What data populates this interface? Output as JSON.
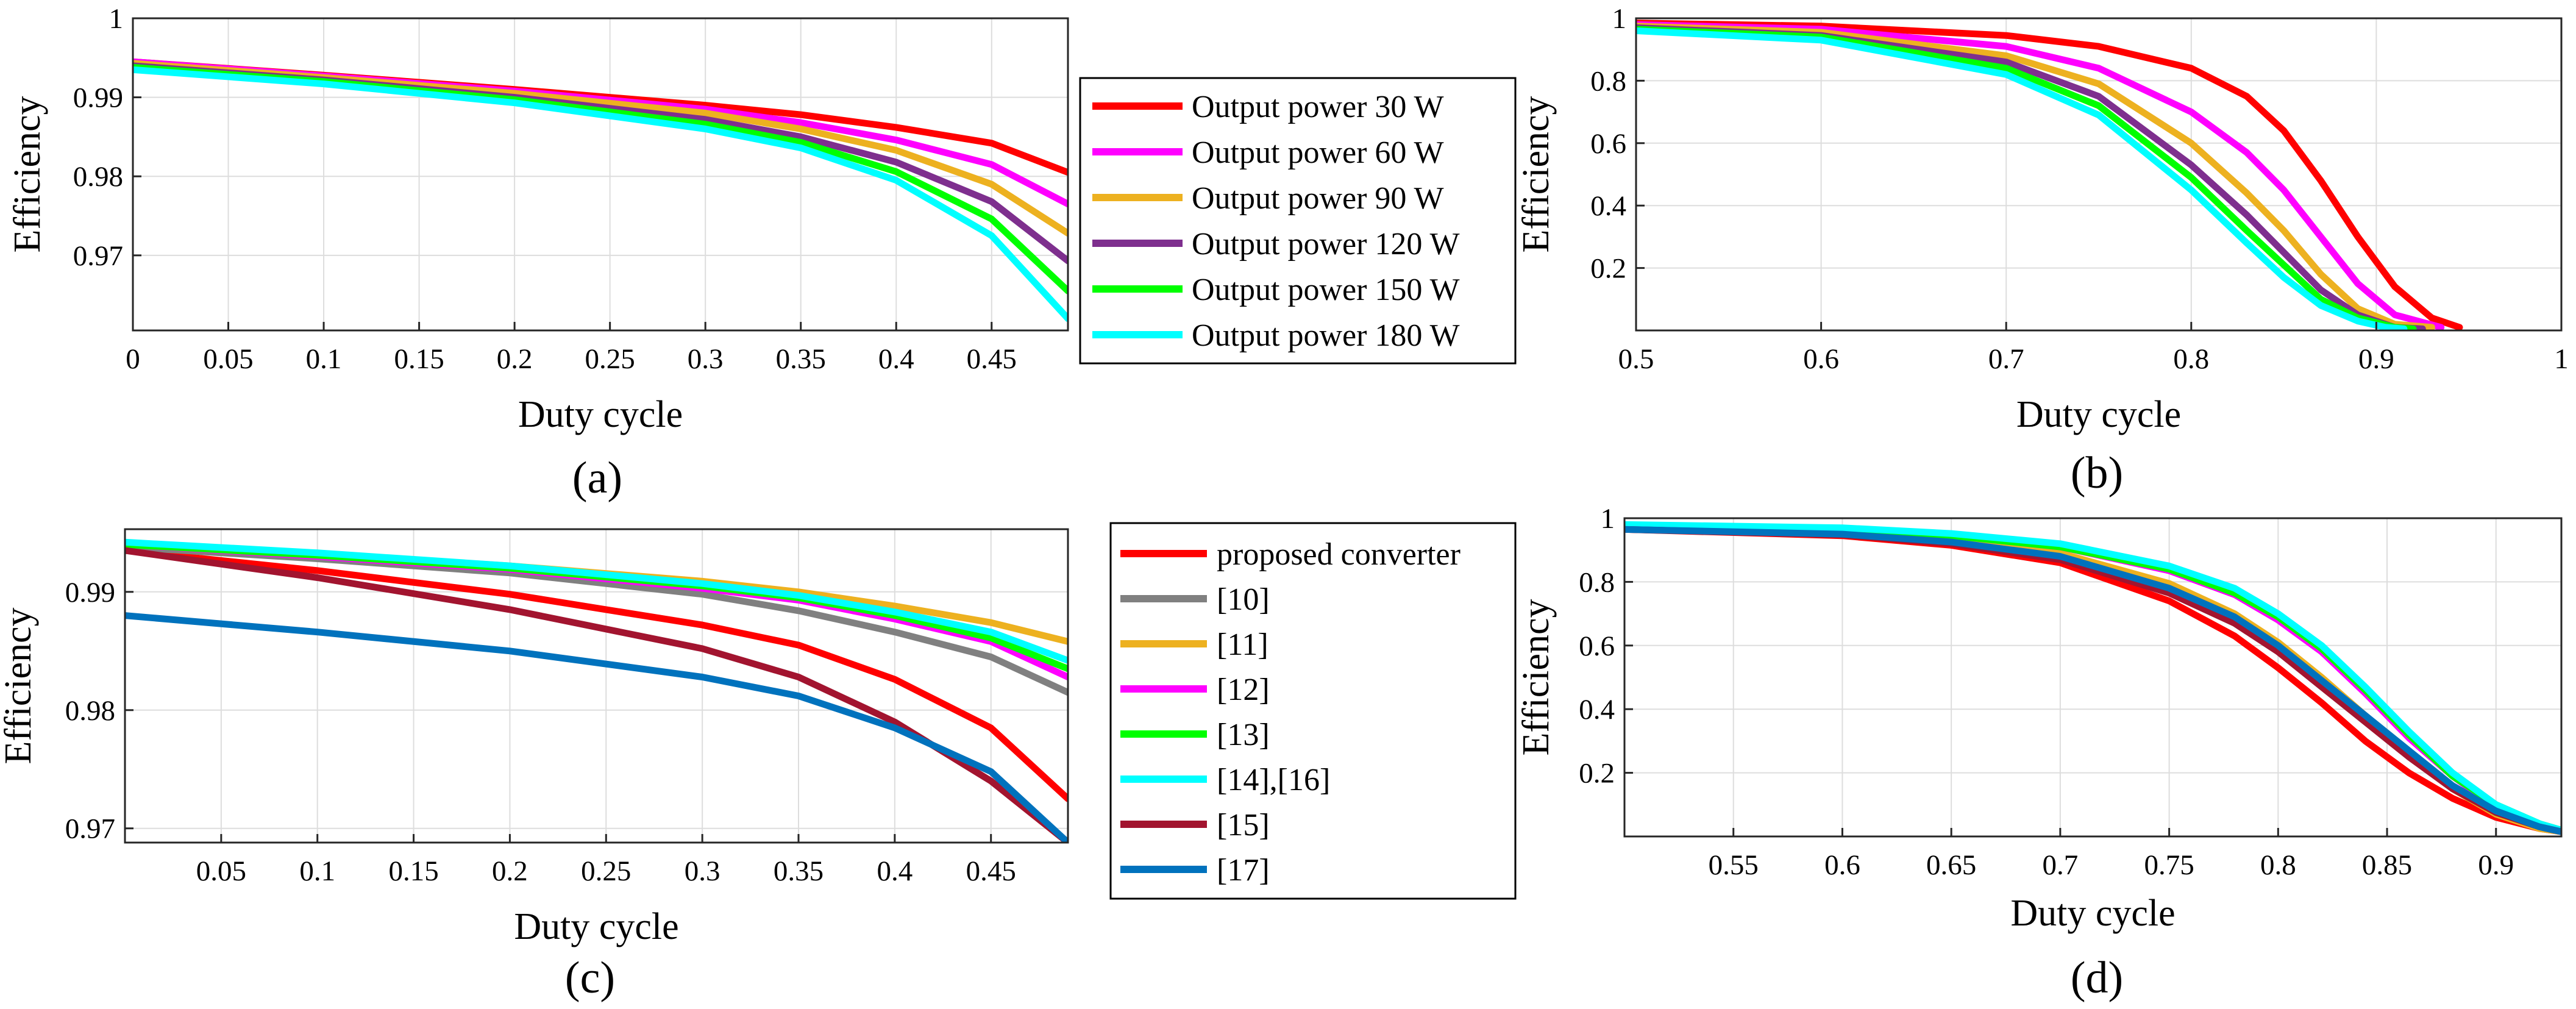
{
  "chart_data": [
    {
      "panel": "(a)",
      "type": "line",
      "xlabel": "Duty cycle",
      "ylabel": "Efficiency",
      "xlim": [
        0,
        0.49
      ],
      "ylim": [
        0.9605,
        1.0
      ],
      "xticks": [
        0,
        0.05,
        0.1,
        0.15,
        0.2,
        0.25,
        0.3,
        0.35,
        0.4,
        0.45
      ],
      "xtick_labels": [
        "0",
        "0.05",
        "0.1",
        "0.15",
        "0.2",
        "0.25",
        "0.3",
        "0.35",
        "0.4",
        "0.45"
      ],
      "yticks": [
        0.97,
        0.98,
        0.99,
        1.0
      ],
      "ytick_labels": [
        "0.97",
        "0.98",
        "0.99",
        "1"
      ],
      "grid": true,
      "legend_position": "outside-right",
      "x": [
        0,
        0.1,
        0.2,
        0.3,
        0.35,
        0.4,
        0.45,
        0.49
      ],
      "series": [
        {
          "name": "Output power 30 W",
          "color": "#ff0000",
          "values": [
            0.9945,
            0.9928,
            0.991,
            0.989,
            0.9878,
            0.9862,
            0.9842,
            0.9805
          ]
        },
        {
          "name": "Output power 60 W",
          "color": "#ff00ff",
          "values": [
            0.9945,
            0.9927,
            0.9908,
            0.9885,
            0.9868,
            0.9846,
            0.9815,
            0.9765
          ]
        },
        {
          "name": "Output power 90 W",
          "color": "#edb120",
          "values": [
            0.9943,
            0.9925,
            0.9905,
            0.988,
            0.986,
            0.9833,
            0.979,
            0.9728
          ]
        },
        {
          "name": "Output power 120 W",
          "color": "#7e2f8e",
          "values": [
            0.994,
            0.9922,
            0.99,
            0.9872,
            0.985,
            0.9818,
            0.9768,
            0.9693
          ]
        },
        {
          "name": "Output power 150 W",
          "color": "#00ff00",
          "values": [
            0.9938,
            0.992,
            0.9897,
            0.9866,
            0.9843,
            0.9806,
            0.9746,
            0.9655
          ]
        },
        {
          "name": "Output power 180 W",
          "color": "#00ffff",
          "values": [
            0.9935,
            0.9917,
            0.9893,
            0.986,
            0.9836,
            0.9795,
            0.9725,
            0.962
          ]
        }
      ]
    },
    {
      "panel": "(b)",
      "type": "line",
      "xlabel": "Duty cycle",
      "ylabel": "Efficiency",
      "xlim": [
        0.5,
        1.0
      ],
      "ylim": [
        0,
        1.0
      ],
      "xticks": [
        0.5,
        0.6,
        0.7,
        0.8,
        0.9,
        1.0
      ],
      "xtick_labels": [
        "0.5",
        "0.6",
        "0.7",
        "0.8",
        "0.9",
        "1"
      ],
      "yticks": [
        0.2,
        0.4,
        0.6,
        0.8,
        1.0
      ],
      "ytick_labels": [
        "0.2",
        "0.4",
        "0.6",
        "0.8",
        "1"
      ],
      "grid": true,
      "series": [
        {
          "name": "Output power 30 W",
          "color": "#ff0000",
          "x": [
            0.5,
            0.6,
            0.7,
            0.75,
            0.8,
            0.83,
            0.85,
            0.87,
            0.89,
            0.91,
            0.93,
            0.945
          ],
          "values": [
            0.985,
            0.975,
            0.945,
            0.91,
            0.84,
            0.75,
            0.64,
            0.48,
            0.3,
            0.14,
            0.04,
            0.01
          ]
        },
        {
          "name": "Output power 60 W",
          "color": "#ff00ff",
          "x": [
            0.5,
            0.6,
            0.7,
            0.75,
            0.8,
            0.83,
            0.85,
            0.87,
            0.89,
            0.91,
            0.935
          ],
          "values": [
            0.98,
            0.965,
            0.91,
            0.84,
            0.7,
            0.57,
            0.45,
            0.3,
            0.15,
            0.05,
            0.01
          ]
        },
        {
          "name": "Output power 90 W",
          "color": "#edb120",
          "x": [
            0.5,
            0.6,
            0.7,
            0.75,
            0.8,
            0.83,
            0.85,
            0.87,
            0.89,
            0.91,
            0.93
          ],
          "values": [
            0.975,
            0.955,
            0.88,
            0.79,
            0.6,
            0.44,
            0.32,
            0.18,
            0.07,
            0.02,
            0.01
          ]
        },
        {
          "name": "Output power 120 W",
          "color": "#7e2f8e",
          "x": [
            0.5,
            0.6,
            0.7,
            0.75,
            0.8,
            0.83,
            0.85,
            0.87,
            0.89,
            0.91,
            0.925
          ],
          "values": [
            0.97,
            0.945,
            0.86,
            0.75,
            0.53,
            0.37,
            0.25,
            0.13,
            0.05,
            0.01,
            0.005
          ]
        },
        {
          "name": "Output power 150 W",
          "color": "#00ff00",
          "x": [
            0.5,
            0.6,
            0.7,
            0.75,
            0.8,
            0.83,
            0.85,
            0.87,
            0.89,
            0.91,
            0.92
          ],
          "values": [
            0.965,
            0.94,
            0.84,
            0.72,
            0.49,
            0.32,
            0.21,
            0.1,
            0.04,
            0.01,
            0.005
          ]
        },
        {
          "name": "Output power 180 W",
          "color": "#00ffff",
          "x": [
            0.5,
            0.6,
            0.7,
            0.75,
            0.8,
            0.83,
            0.85,
            0.87,
            0.89,
            0.905,
            0.915
          ],
          "values": [
            0.96,
            0.93,
            0.82,
            0.69,
            0.45,
            0.28,
            0.17,
            0.08,
            0.03,
            0.01,
            0.005
          ]
        }
      ]
    },
    {
      "panel": "(c)",
      "type": "line",
      "xlabel": "Duty cycle",
      "ylabel": "Efficiency",
      "xlim": [
        0,
        0.49
      ],
      "ylim": [
        0.9688,
        0.9953
      ],
      "xticks": [
        0.05,
        0.1,
        0.15,
        0.2,
        0.25,
        0.3,
        0.35,
        0.4,
        0.45
      ],
      "xtick_labels": [
        "0.05",
        "0.1",
        "0.15",
        "0.2",
        "0.25",
        "0.3",
        "0.35",
        "0.4",
        "0.45"
      ],
      "yticks": [
        0.97,
        0.98,
        0.99
      ],
      "ytick_labels": [
        "0.97",
        "0.98",
        "0.99"
      ],
      "grid": true,
      "legend_position": "outside-right",
      "x": [
        0,
        0.1,
        0.2,
        0.3,
        0.35,
        0.4,
        0.45,
        0.49
      ],
      "series": [
        {
          "name": "proposed converter",
          "color": "#ff0000",
          "values": [
            0.9935,
            0.9918,
            0.9898,
            0.9872,
            0.9855,
            0.9826,
            0.9785,
            0.9725
          ]
        },
        {
          "name": "[10]",
          "color": "#808080",
          "values": [
            0.9938,
            0.9928,
            0.9916,
            0.9898,
            0.9884,
            0.9866,
            0.9845,
            0.9815
          ]
        },
        {
          "name": "[11]",
          "color": "#edb120",
          "values": [
            0.994,
            0.9932,
            0.9922,
            0.9909,
            0.99,
            0.9888,
            0.9874,
            0.9858
          ]
        },
        {
          "name": "[12]",
          "color": "#ff00ff",
          "values": [
            0.994,
            0.993,
            0.9919,
            0.9903,
            0.9893,
            0.9877,
            0.9858,
            0.9828
          ]
        },
        {
          "name": "[13]",
          "color": "#00ff00",
          "values": [
            0.994,
            0.9931,
            0.992,
            0.9905,
            0.9895,
            0.988,
            0.9861,
            0.9835
          ]
        },
        {
          "name": "[14],[16]",
          "color": "#00ffff",
          "values": [
            0.9942,
            0.9933,
            0.9922,
            0.9907,
            0.9897,
            0.9883,
            0.9866,
            0.9842
          ]
        },
        {
          "name": "[15]",
          "color": "#a2142f",
          "values": [
            0.9935,
            0.9912,
            0.9885,
            0.9852,
            0.9828,
            0.979,
            0.974,
            0.9688
          ]
        },
        {
          "name": "[17]",
          "color": "#0072bd",
          "values": [
            0.988,
            0.9866,
            0.985,
            0.9828,
            0.9812,
            0.9785,
            0.9748,
            0.9688
          ]
        }
      ]
    },
    {
      "panel": "(d)",
      "type": "line",
      "xlabel": "Duty cycle",
      "ylabel": "Efficiency",
      "xlim": [
        0.5,
        0.93
      ],
      "ylim": [
        0,
        1.0
      ],
      "xticks": [
        0.55,
        0.6,
        0.65,
        0.7,
        0.75,
        0.8,
        0.85,
        0.9
      ],
      "xtick_labels": [
        "0.55",
        "0.6",
        "0.65",
        "0.7",
        "0.75",
        "0.8",
        "0.85",
        "0.9"
      ],
      "yticks": [
        0.2,
        0.4,
        0.6,
        0.8,
        1.0
      ],
      "ytick_labels": [
        "0.2",
        "0.4",
        "0.6",
        "0.8",
        "1"
      ],
      "grid": true,
      "x": [
        0.5,
        0.6,
        0.65,
        0.7,
        0.75,
        0.78,
        0.8,
        0.82,
        0.84,
        0.86,
        0.88,
        0.9,
        0.92,
        0.93
      ],
      "series": [
        {
          "name": "proposed converter",
          "color": "#ff0000",
          "values": [
            0.965,
            0.945,
            0.915,
            0.86,
            0.74,
            0.63,
            0.53,
            0.42,
            0.3,
            0.2,
            0.12,
            0.06,
            0.025,
            0.015
          ]
        },
        {
          "name": "[10]",
          "color": "#808080",
          "values": [
            0.97,
            0.955,
            0.93,
            0.885,
            0.785,
            0.69,
            0.6,
            0.49,
            0.37,
            0.26,
            0.15,
            0.08,
            0.03,
            0.015
          ]
        },
        {
          "name": "[11]",
          "color": "#edb120",
          "values": [
            0.97,
            0.955,
            0.932,
            0.89,
            0.795,
            0.7,
            0.61,
            0.5,
            0.38,
            0.26,
            0.15,
            0.07,
            0.025,
            0.015
          ]
        },
        {
          "name": "[12]",
          "color": "#ff00ff",
          "values": [
            0.975,
            0.965,
            0.945,
            0.91,
            0.835,
            0.76,
            0.68,
            0.58,
            0.45,
            0.31,
            0.19,
            0.09,
            0.035,
            0.02
          ]
        },
        {
          "name": "[13]",
          "color": "#00ff00",
          "values": [
            0.975,
            0.965,
            0.945,
            0.91,
            0.84,
            0.765,
            0.69,
            0.59,
            0.46,
            0.32,
            0.19,
            0.1,
            0.04,
            0.02
          ]
        },
        {
          "name": "[14],[16]",
          "color": "#00ffff",
          "values": [
            0.98,
            0.97,
            0.952,
            0.92,
            0.85,
            0.78,
            0.7,
            0.6,
            0.47,
            0.33,
            0.2,
            0.1,
            0.04,
            0.02
          ]
        },
        {
          "name": "[15]",
          "color": "#a2142f",
          "values": [
            0.965,
            0.948,
            0.92,
            0.87,
            0.765,
            0.67,
            0.58,
            0.47,
            0.36,
            0.25,
            0.15,
            0.075,
            0.03,
            0.015
          ]
        },
        {
          "name": "[17]",
          "color": "#0072bd",
          "values": [
            0.965,
            0.95,
            0.925,
            0.88,
            0.78,
            0.69,
            0.6,
            0.49,
            0.38,
            0.27,
            0.16,
            0.08,
            0.03,
            0.015
          ]
        }
      ]
    }
  ]
}
